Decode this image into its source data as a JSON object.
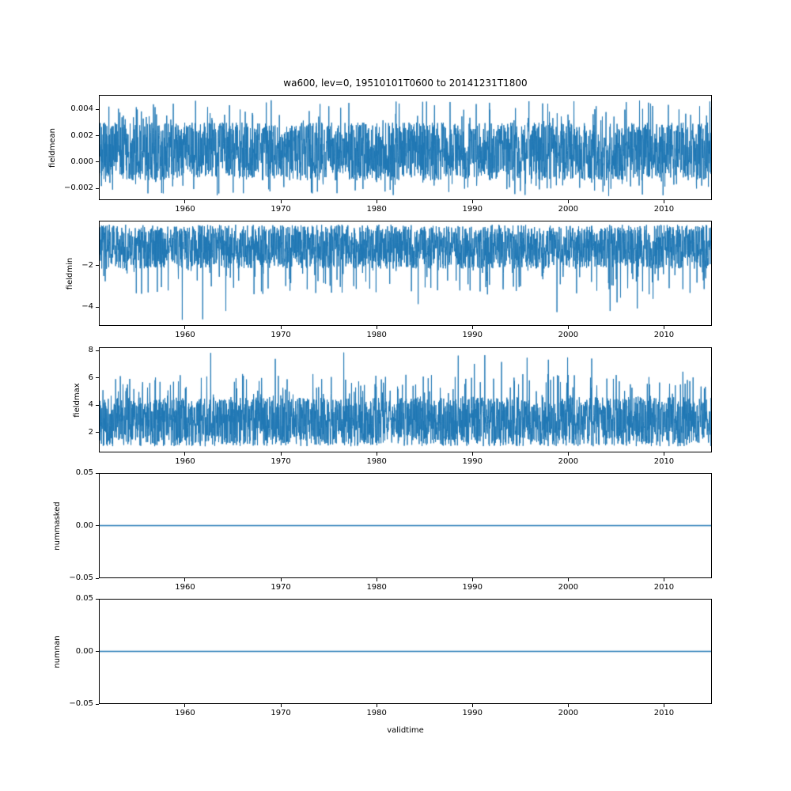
{
  "title": "wa600, lev=0, 19510101T0600 to 20141231T1800",
  "chart_data": {
    "type": "line",
    "title": "wa600, lev=0, 19510101T0600 to 20141231T1800",
    "xlabel": "validtime",
    "line_color": "#1f77b4",
    "grid": false,
    "legend": null,
    "x_range": [
      1951,
      2015
    ],
    "x_ticks": [
      1960,
      1970,
      1980,
      1990,
      2000,
      2010
    ],
    "x_tick_labels": [
      "1960",
      "1970",
      "1980",
      "1990",
      "2000",
      "2010"
    ],
    "subplots": [
      {
        "ylabel": "fieldmean",
        "ylim": [
          -0.0029,
          0.0051
        ],
        "yticks": [
          {
            "value": 0.004,
            "label": "0.004"
          },
          {
            "value": 0.002,
            "label": "0.002"
          },
          {
            "value": 0.0,
            "label": "0.000"
          },
          {
            "value": -0.002,
            "label": "−0.002"
          }
        ],
        "series": {
          "kind": "noise",
          "description": "dense noisy time series oscillating around ~0.001, band roughly −0.001 to 0.003, spikes up to ~0.0047 and down to ~−0.0026",
          "base": [
            -0.0014,
            0.003
          ],
          "spikes": [
            {
              "prob": 0.03,
              "range": [
                0.003,
                0.0047
              ]
            },
            {
              "prob": 0.03,
              "range": [
                -0.0026,
                -0.0014
              ]
            }
          ]
        }
      },
      {
        "ylabel": "fieldmin",
        "ylim": [
          -4.9,
          0.15
        ],
        "yticks": [
          {
            "value": -2,
            "label": "−2"
          },
          {
            "value": -4,
            "label": "−4"
          }
        ],
        "series": {
          "kind": "noise",
          "description": "dense noisy time series between ~0 and −2.2 with downward spikes to ~−4.7",
          "base": [
            -2.15,
            -0.04
          ],
          "spikes": [
            {
              "prob": 0.04,
              "range": [
                -3.4,
                -2.1
              ]
            },
            {
              "prob": 0.004,
              "range": [
                -4.75,
                -3.4
              ]
            }
          ]
        }
      },
      {
        "ylabel": "fieldmax",
        "ylim": [
          0.55,
          8.25
        ],
        "yticks": [
          {
            "value": 8,
            "label": "8"
          },
          {
            "value": 6,
            "label": "6"
          },
          {
            "value": 4,
            "label": "4"
          },
          {
            "value": 2,
            "label": "2"
          }
        ],
        "series": {
          "kind": "noise",
          "description": "dense noisy time series between ~1 and ~5 with upward spikes to ~7.9",
          "base": [
            1.0,
            4.6
          ],
          "spikes": [
            {
              "prob": 0.05,
              "range": [
                4.6,
                6.3
              ]
            },
            {
              "prob": 0.005,
              "range": [
                6.3,
                7.9
              ]
            }
          ]
        }
      },
      {
        "ylabel": "nummasked",
        "ylim": [
          -0.05,
          0.05
        ],
        "yticks": [
          {
            "value": 0.05,
            "label": "0.05"
          },
          {
            "value": 0.0,
            "label": "0.00"
          },
          {
            "value": -0.05,
            "label": "−0.05"
          }
        ],
        "series": {
          "kind": "constant",
          "value": 0,
          "description": "flat line at 0 for full time range"
        }
      },
      {
        "ylabel": "numnan",
        "ylim": [
          -0.05,
          0.05
        ],
        "yticks": [
          {
            "value": 0.05,
            "label": "0.05"
          },
          {
            "value": 0.0,
            "label": "0.00"
          },
          {
            "value": -0.05,
            "label": "−0.05"
          }
        ],
        "series": {
          "kind": "constant",
          "value": 0,
          "description": "flat line at 0 for full time range"
        }
      }
    ]
  }
}
